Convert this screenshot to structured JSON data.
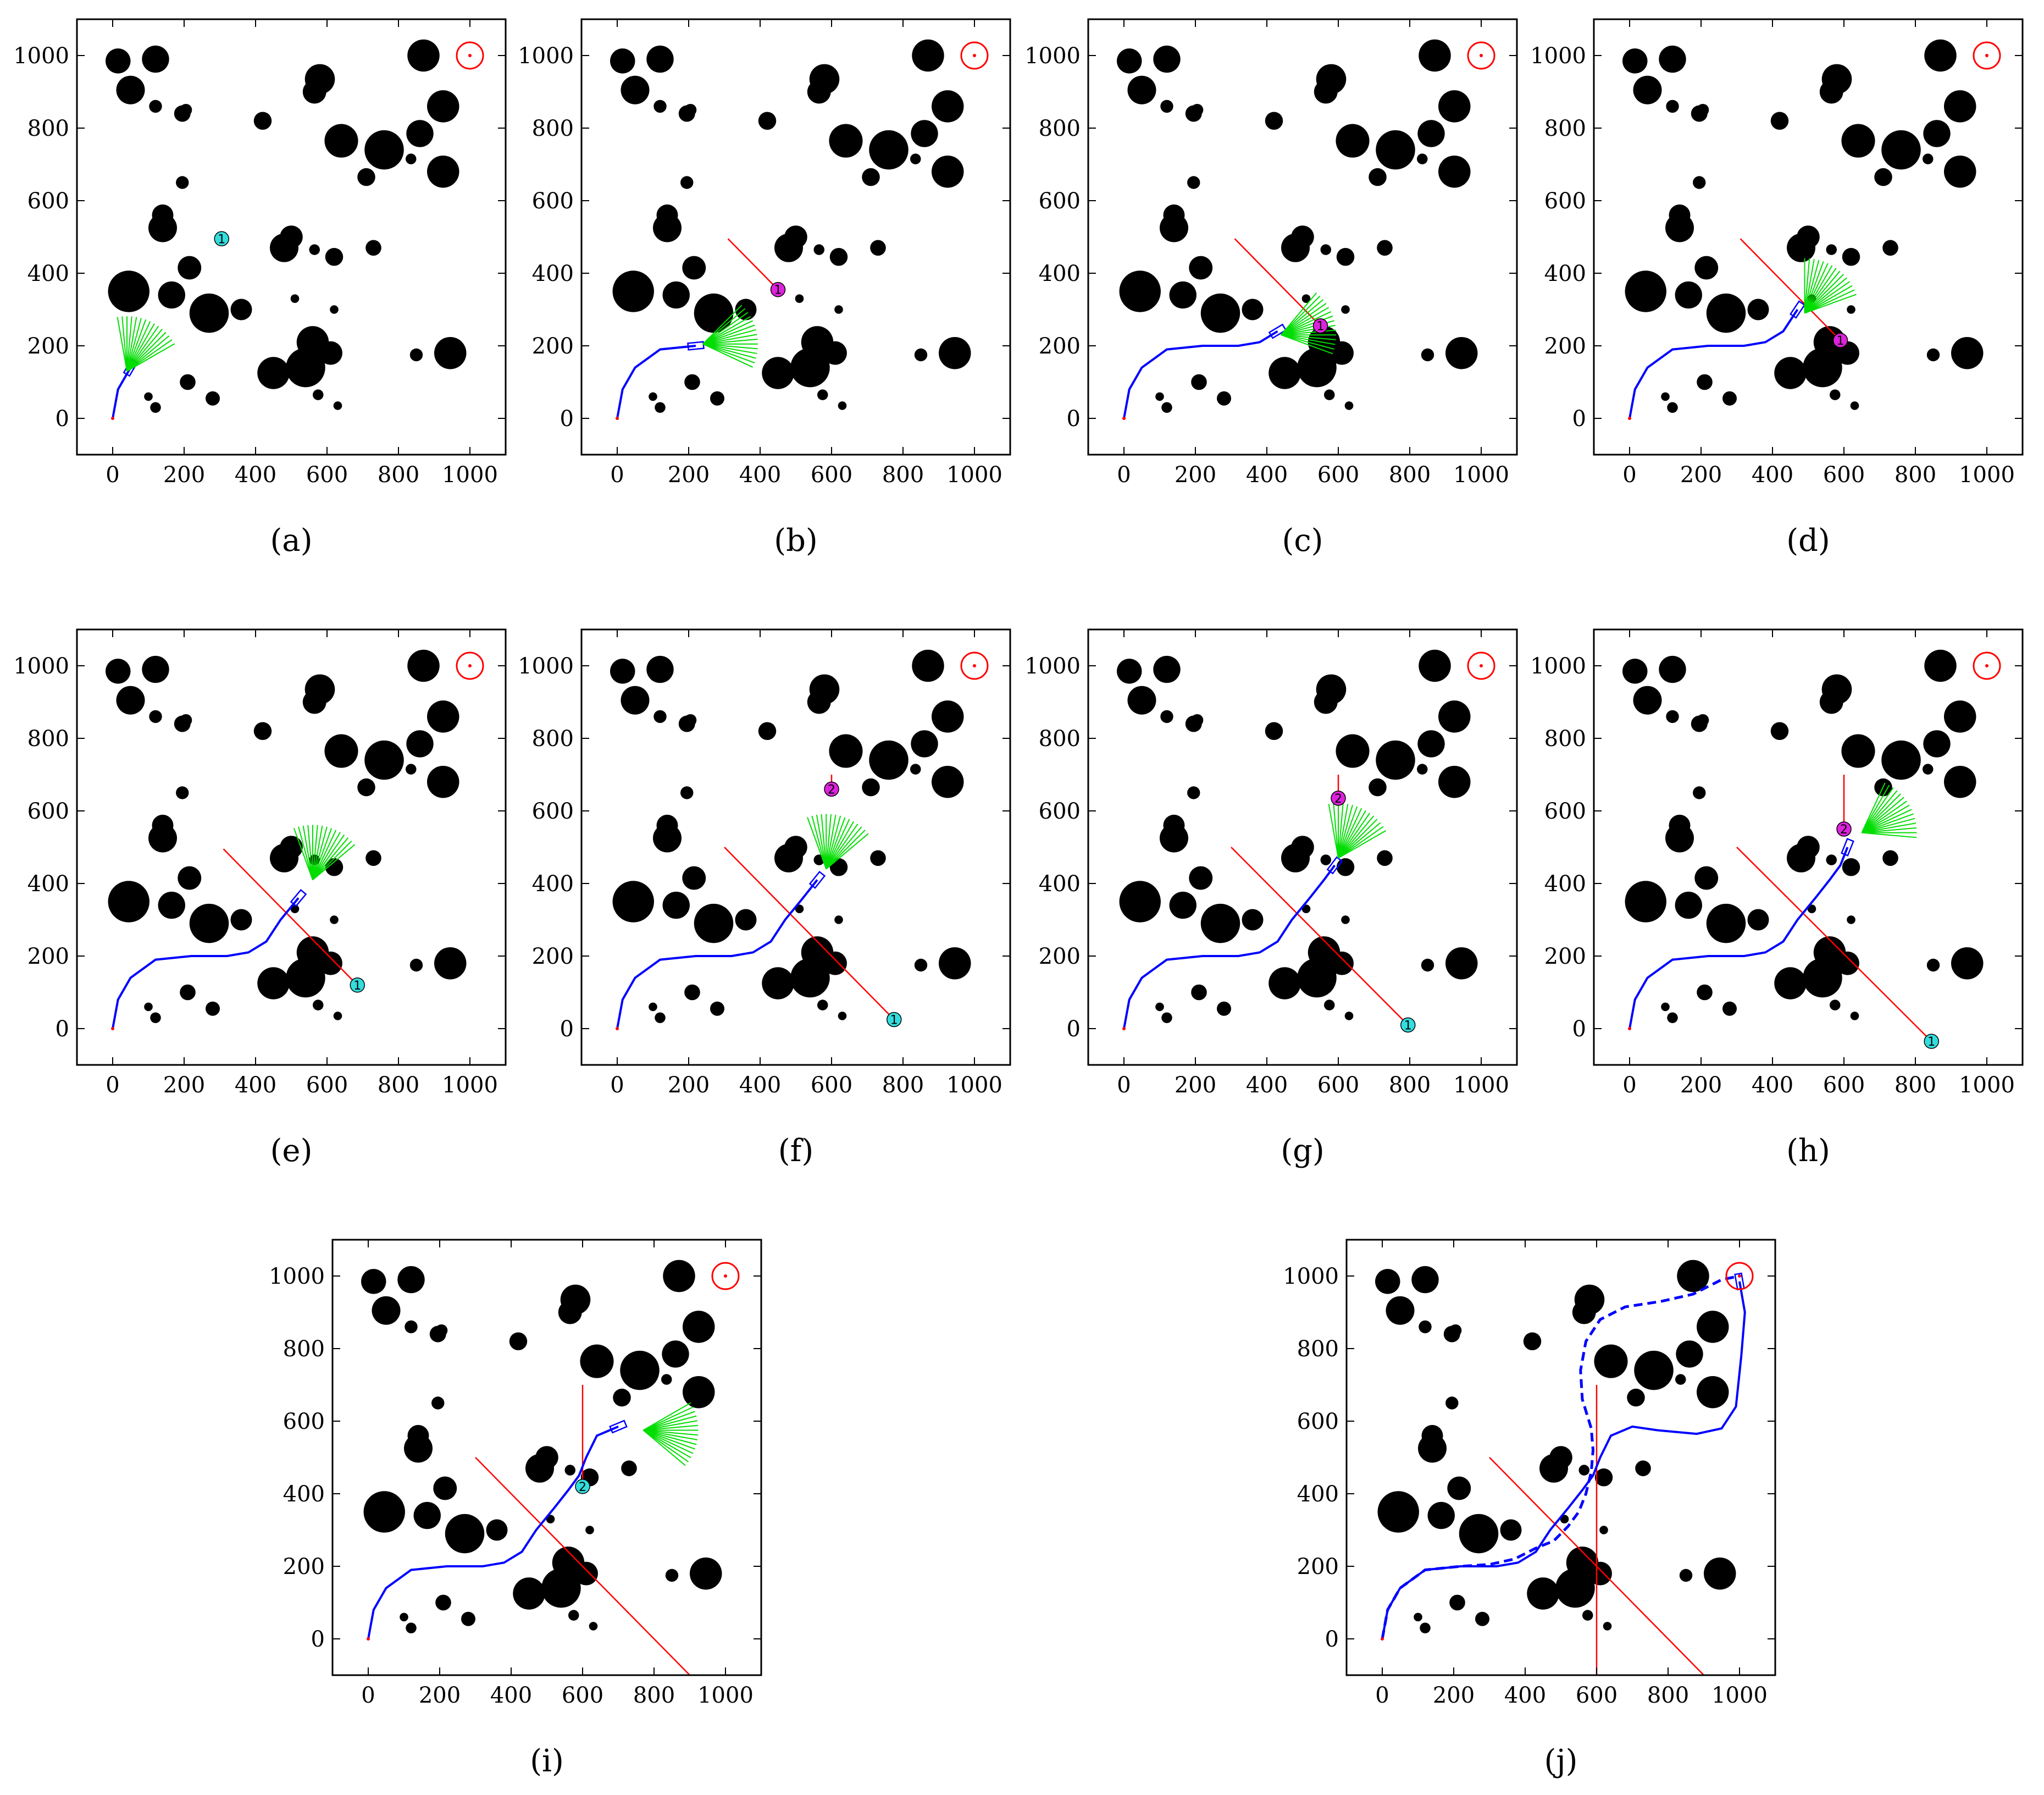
{
  "figure": {
    "panels": [
      {
        "caption": "(a)"
      },
      {
        "caption": "(b)"
      },
      {
        "caption": "(c)"
      },
      {
        "caption": "(d)"
      },
      {
        "caption": "(e)"
      },
      {
        "caption": "(f)"
      },
      {
        "caption": "(g)"
      },
      {
        "caption": "(h)"
      },
      {
        "caption": "(i)"
      },
      {
        "caption": "(j)"
      }
    ]
  },
  "colors": {
    "obstacle": "#000000",
    "goal": "#ff0000",
    "path": "#0000ff",
    "sensor_fan": "#00dd00",
    "threat_line": "#ff0000",
    "dyn_cyan": "#33dddd",
    "dyn_magenta": "#dd22dd"
  },
  "chart_data": {
    "type": "scatter",
    "xlim": [
      -100,
      1100
    ],
    "ylim": [
      -100,
      1100
    ],
    "xticks": [
      0,
      200,
      400,
      600,
      800,
      1000
    ],
    "yticks": [
      0,
      200,
      400,
      600,
      800,
      1000
    ],
    "grid": false,
    "start": [
      0,
      0
    ],
    "goal": [
      1000,
      1000
    ],
    "obstacles": [
      [
        15,
        985,
        35
      ],
      [
        120,
        990,
        38
      ],
      [
        50,
        905,
        40
      ],
      [
        120,
        860,
        18
      ],
      [
        195,
        840,
        23
      ],
      [
        205,
        850,
        17
      ],
      [
        420,
        820,
        25
      ],
      [
        565,
        900,
        33
      ],
      [
        580,
        935,
        42
      ],
      [
        870,
        1000,
        45
      ],
      [
        925,
        860,
        45
      ],
      [
        640,
        765,
        47
      ],
      [
        760,
        740,
        55
      ],
      [
        860,
        785,
        38
      ],
      [
        925,
        680,
        45
      ],
      [
        710,
        665,
        25
      ],
      [
        835,
        715,
        15
      ],
      [
        195,
        650,
        18
      ],
      [
        140,
        560,
        30
      ],
      [
        140,
        525,
        40
      ],
      [
        480,
        470,
        40
      ],
      [
        500,
        500,
        32
      ],
      [
        620,
        445,
        25
      ],
      [
        565,
        465,
        15
      ],
      [
        730,
        470,
        22
      ],
      [
        45,
        350,
        58
      ],
      [
        165,
        340,
        38
      ],
      [
        215,
        415,
        33
      ],
      [
        270,
        290,
        55
      ],
      [
        360,
        300,
        30
      ],
      [
        510,
        330,
        12
      ],
      [
        560,
        210,
        45
      ],
      [
        540,
        140,
        55
      ],
      [
        610,
        180,
        33
      ],
      [
        450,
        125,
        45
      ],
      [
        210,
        100,
        22
      ],
      [
        280,
        55,
        20
      ],
      [
        620,
        300,
        12
      ],
      [
        575,
        65,
        15
      ],
      [
        630,
        35,
        12
      ],
      [
        100,
        60,
        12
      ],
      [
        120,
        30,
        15
      ],
      [
        850,
        175,
        18
      ],
      [
        945,
        180,
        45
      ]
    ],
    "path_full": [
      [
        0,
        0
      ],
      [
        15,
        80
      ],
      [
        50,
        140
      ],
      [
        120,
        190
      ],
      [
        220,
        200
      ],
      [
        320,
        200
      ],
      [
        380,
        210
      ],
      [
        430,
        240
      ],
      [
        470,
        300
      ],
      [
        520,
        360
      ],
      [
        560,
        410
      ],
      [
        590,
        450
      ],
      [
        610,
        500
      ],
      [
        640,
        560
      ],
      [
        700,
        585
      ],
      [
        770,
        575
      ],
      [
        880,
        565
      ],
      [
        950,
        580
      ],
      [
        990,
        640
      ],
      [
        1005,
        780
      ],
      [
        1015,
        900
      ],
      [
        1000,
        985
      ]
    ],
    "path_alt": [
      [
        0,
        0
      ],
      [
        15,
        80
      ],
      [
        50,
        140
      ],
      [
        120,
        190
      ],
      [
        220,
        200
      ],
      [
        300,
        205
      ],
      [
        370,
        220
      ],
      [
        430,
        250
      ],
      [
        480,
        270
      ],
      [
        520,
        310
      ],
      [
        550,
        350
      ],
      [
        570,
        400
      ],
      [
        585,
        460
      ],
      [
        590,
        520
      ],
      [
        585,
        580
      ],
      [
        560,
        660
      ],
      [
        555,
        740
      ],
      [
        570,
        820
      ],
      [
        610,
        880
      ],
      [
        680,
        915
      ],
      [
        780,
        930
      ],
      [
        870,
        950
      ],
      [
        950,
        990
      ],
      [
        1000,
        1000
      ]
    ],
    "panels": [
      {
        "path_end_index": 2,
        "fan": {
          "x": 40,
          "y": 130,
          "angle": 65
        },
        "threat_lines": [],
        "dynamic_obstacles": [
          {
            "id": "1",
            "x": 305,
            "y": 495,
            "color": "cyan"
          }
        ]
      },
      {
        "path_end_index": 4,
        "fan": {
          "x": 240,
          "y": 205,
          "angle": 10
        },
        "threat_lines": [
          [
            310,
            495,
            450,
            355
          ]
        ],
        "dynamic_obstacles": [
          {
            "id": "1",
            "x": 450,
            "y": 355,
            "color": "magenta"
          }
        ]
      },
      {
        "path_end_index": 7,
        "fan": {
          "x": 440,
          "y": 230,
          "angle": 15
        },
        "threat_lines": [
          [
            310,
            495,
            550,
            255
          ]
        ],
        "dynamic_obstacles": [
          {
            "id": "1",
            "x": 550,
            "y": 255,
            "color": "magenta"
          }
        ]
      },
      {
        "path_end_index": 8,
        "fan": {
          "x": 490,
          "y": 290,
          "angle": 55
        },
        "threat_lines": [
          [
            310,
            495,
            590,
            215
          ]
        ],
        "dynamic_obstacles": [
          {
            "id": "1",
            "x": 590,
            "y": 215,
            "color": "magenta"
          }
        ]
      },
      {
        "path_end_index": 9,
        "fan": {
          "x": 560,
          "y": 410,
          "angle": 75
        },
        "threat_lines": [
          [
            310,
            495,
            685,
            120
          ]
        ],
        "dynamic_obstacles": [
          {
            "id": "1",
            "x": 685,
            "y": 120,
            "color": "cyan"
          }
        ]
      },
      {
        "path_end_index": 10,
        "fan": {
          "x": 585,
          "y": 440,
          "angle": 75
        },
        "threat_lines": [
          [
            300,
            500,
            775,
            25
          ],
          [
            600,
            700,
            600,
            660
          ]
        ],
        "dynamic_obstacles": [
          {
            "id": "1",
            "x": 775,
            "y": 25,
            "color": "cyan"
          },
          {
            "id": "2",
            "x": 600,
            "y": 660,
            "color": "magenta"
          }
        ]
      },
      {
        "path_end_index": 11,
        "fan": {
          "x": 600,
          "y": 470,
          "angle": 65
        },
        "threat_lines": [
          [
            300,
            500,
            795,
            10
          ],
          [
            600,
            700,
            600,
            635
          ]
        ],
        "dynamic_obstacles": [
          {
            "id": "1",
            "x": 795,
            "y": 10,
            "color": "cyan"
          },
          {
            "id": "2",
            "x": 600,
            "y": 635,
            "color": "magenta"
          }
        ]
      },
      {
        "path_end_index": 12,
        "fan": {
          "x": 650,
          "y": 540,
          "angle": 30
        },
        "threat_lines": [
          [
            300,
            500,
            845,
            -35
          ],
          [
            600,
            700,
            600,
            550
          ]
        ],
        "dynamic_obstacles": [
          {
            "id": "1",
            "x": 845,
            "y": -35,
            "color": "cyan"
          },
          {
            "id": "2",
            "x": 600,
            "y": 550,
            "color": "magenta"
          }
        ]
      },
      {
        "path_end_index": 14,
        "fan": {
          "x": 770,
          "y": 575,
          "angle": -5
        },
        "threat_lines": [
          [
            300,
            500,
            900,
            -100
          ],
          [
            600,
            700,
            600,
            420
          ]
        ],
        "dynamic_obstacles": [
          {
            "id": "2",
            "x": 600,
            "y": 420,
            "color": "cyan"
          }
        ]
      },
      {
        "path_end_index": 21,
        "fan": null,
        "alt_path": true,
        "threat_lines": [
          [
            300,
            500,
            900,
            -100
          ],
          [
            600,
            700,
            600,
            -100
          ]
        ],
        "dynamic_obstacles": []
      }
    ]
  }
}
